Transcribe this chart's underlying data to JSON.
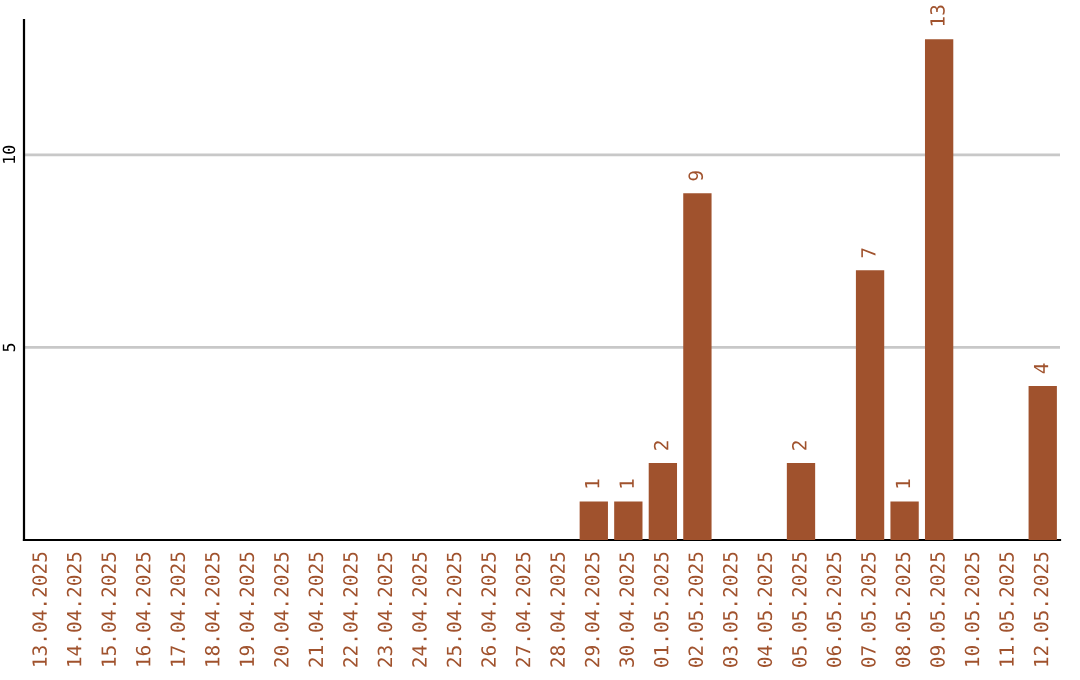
{
  "chart_data": {
    "type": "bar",
    "categories": [
      "13.04.2025",
      "14.04.2025",
      "15.04.2025",
      "16.04.2025",
      "17.04.2025",
      "18.04.2025",
      "19.04.2025",
      "20.04.2025",
      "21.04.2025",
      "22.04.2025",
      "23.04.2025",
      "24.04.2025",
      "25.04.2025",
      "26.04.2025",
      "27.04.2025",
      "28.04.2025",
      "29.04.2025",
      "30.04.2025",
      "01.05.2025",
      "02.05.2025",
      "03.05.2025",
      "04.05.2025",
      "05.05.2025",
      "06.05.2025",
      "07.05.2025",
      "08.05.2025",
      "09.05.2025",
      "10.05.2025",
      "11.05.2025",
      "12.05.2025"
    ],
    "values": [
      null,
      null,
      null,
      null,
      null,
      null,
      null,
      null,
      null,
      null,
      null,
      null,
      null,
      null,
      null,
      null,
      1,
      1,
      2,
      9,
      null,
      null,
      2,
      null,
      7,
      1,
      13,
      null,
      null,
      4
    ],
    "color": "#a0522d",
    "ylim": [
      0,
      13.5
    ],
    "yticks": [
      5,
      10
    ],
    "grid": "y",
    "data_labels": true
  }
}
